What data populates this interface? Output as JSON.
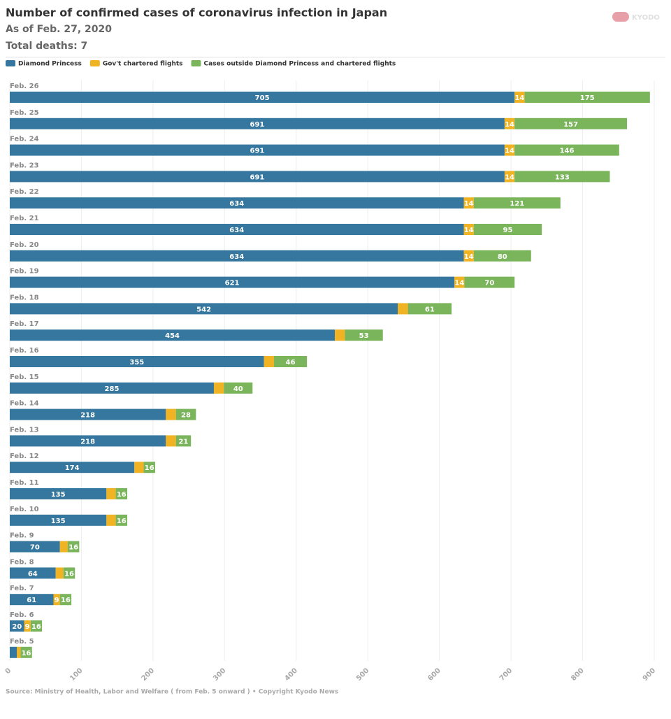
{
  "chart_data": {
    "type": "stacked-bar-horizontal",
    "title": "Number of confirmed cases of coronavirus infection in Japan",
    "subtitle": "As of Feb. 27, 2020",
    "note": "Total deaths: 7",
    "source": "Source: Ministry of Health, Labor and Welfare ( from Feb. 5 onward ) • Copyright Kyodo News",
    "logo": "KYODO",
    "categories": [
      "Feb. 26",
      "Feb. 25",
      "Feb. 24",
      "Feb. 23",
      "Feb. 22",
      "Feb. 21",
      "Feb. 20",
      "Feb. 19",
      "Feb. 18",
      "Feb. 17",
      "Feb. 16",
      "Feb. 15",
      "Feb. 14",
      "Feb. 13",
      "Feb. 12",
      "Feb. 11",
      "Feb. 10",
      "Feb. 9",
      "Feb. 8",
      "Feb. 7",
      "Feb. 6",
      "Feb. 5"
    ],
    "series": [
      {
        "name": "Diamond Princess",
        "color": "#35779e",
        "values": [
          705,
          691,
          691,
          691,
          634,
          634,
          634,
          621,
          542,
          454,
          355,
          285,
          218,
          218,
          174,
          135,
          135,
          70,
          64,
          61,
          20,
          10
        ]
      },
      {
        "name": "Gov't chartered flights",
        "color": "#f0b323",
        "values": [
          14,
          14,
          14,
          14,
          14,
          14,
          14,
          14,
          14,
          14,
          14,
          14,
          14,
          14,
          13,
          13,
          13,
          11,
          11,
          9,
          9,
          5
        ]
      },
      {
        "name": "Cases outside Diamond Princess and chartered flights",
        "color": "#7ab55c",
        "values": [
          175,
          157,
          146,
          133,
          121,
          95,
          80,
          70,
          61,
          53,
          46,
          40,
          28,
          21,
          16,
          16,
          16,
          16,
          16,
          16,
          16,
          16
        ]
      }
    ],
    "xlim": [
      0,
      900
    ],
    "xticks": [
      0,
      100,
      200,
      300,
      400,
      500,
      600,
      700,
      800,
      900
    ],
    "grid": true
  }
}
